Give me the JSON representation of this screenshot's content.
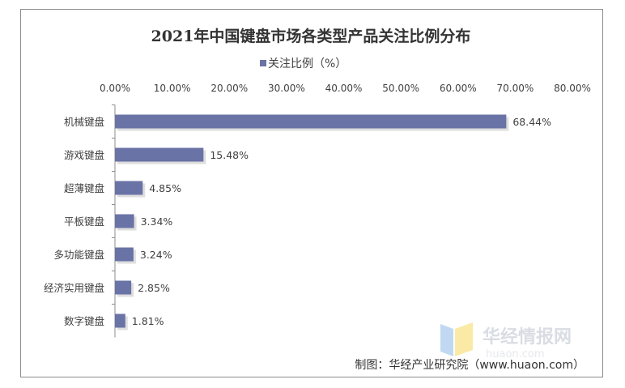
{
  "chart_data": {
    "type": "bar",
    "orientation": "horizontal",
    "title": "2021年中国键盘市场各类型产品关注比例分布",
    "legend": {
      "position": "top",
      "entries": [
        "关注比例（%）"
      ]
    },
    "categories": [
      "机械键盘",
      "游戏键盘",
      "超薄键盘",
      "平板键盘",
      "多功能键盘",
      "经济实用键盘",
      "数字键盘"
    ],
    "series": [
      {
        "name": "关注比例（%）",
        "values": [
          68.44,
          15.48,
          4.85,
          3.34,
          3.24,
          2.85,
          1.81
        ],
        "color": "#6a73a6"
      }
    ],
    "data_labels": [
      "68.44%",
      "15.48%",
      "4.85%",
      "3.34%",
      "3.24%",
      "2.85%",
      "1.81%"
    ],
    "xlim": [
      0,
      80
    ],
    "x_ticks": [
      0,
      10,
      20,
      30,
      40,
      50,
      60,
      70,
      80
    ],
    "x_tick_labels": [
      "0.00%",
      "10.00%",
      "20.00%",
      "30.00%",
      "40.00%",
      "50.00%",
      "60.00%",
      "70.00%",
      "80.00%"
    ],
    "x_axis_position": "top",
    "grid": false
  },
  "source": "制图：华经产业研究院（www.huaon.com）",
  "watermark": {
    "text": "华经情报网",
    "subtext": "huaon.com",
    "colors": [
      "#4a90d9",
      "#f2c200"
    ]
  },
  "colors": {
    "bar": "#6a73a6",
    "text": "#404040",
    "frame": "#8c8c8c"
  }
}
